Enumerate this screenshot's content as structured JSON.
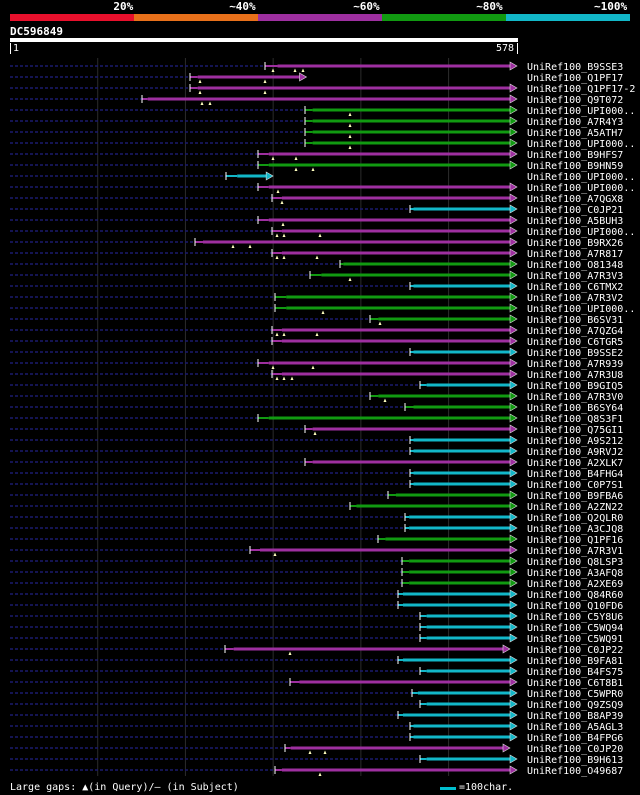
{
  "query": {
    "name": "DC596849",
    "start": "1",
    "end": "578",
    "length": 578
  },
  "legend": [
    {
      "label": "20%",
      "color": "#e8102c"
    },
    {
      "label": "~40%",
      "color": "#e8701a"
    },
    {
      "label": "~60%",
      "color": "#9e2fa0"
    },
    {
      "label": "~80%",
      "color": "#119a11"
    },
    {
      "label": "~100%",
      "color": "#12b7c8"
    }
  ],
  "footer": {
    "gaps_text": "Large gaps: ▲(in Query)/– (in Subject)",
    "scale_text": "=100char."
  },
  "hits": [
    {
      "name": "UniRef100_B9SSE3",
      "qs": 305,
      "qe": 578,
      "tier": 2,
      "left": 265,
      "gaps": [
        8,
        30,
        38
      ],
      "endcap": "tri"
    },
    {
      "name": "UniRef100_Q1PF17",
      "qs": 214,
      "qe": 338,
      "tier": 2,
      "left": 190,
      "gaps": [
        10,
        75
      ],
      "endcap": "tri"
    },
    {
      "name": "UniRef100_Q1PF17-2",
      "qs": 214,
      "qe": 578,
      "tier": 2,
      "left": 190,
      "gaps": [
        10,
        75
      ],
      "endcap": "tri"
    },
    {
      "name": "UniRef100_Q9T072",
      "qs": 157,
      "qe": 578,
      "tier": 2,
      "left": 142,
      "gaps": [
        60,
        68
      ],
      "endcap": "tri"
    },
    {
      "name": "UniRef100_UPI000..",
      "qs": 345,
      "qe": 578,
      "tier": 3,
      "left": 305,
      "gaps": [
        45
      ],
      "endcap": "tri"
    },
    {
      "name": "UniRef100_A7R4Y3",
      "qs": 345,
      "qe": 578,
      "tier": 3,
      "left": 305,
      "gaps": [
        45
      ],
      "endcap": "tri"
    },
    {
      "name": "UniRef100_A5ATH7",
      "qs": 345,
      "qe": 578,
      "tier": 3,
      "left": 305,
      "gaps": [
        45
      ],
      "endcap": "tri"
    },
    {
      "name": "UniRef100_UPI000..",
      "qs": 345,
      "qe": 578,
      "tier": 3,
      "left": 305,
      "gaps": [
        45
      ],
      "endcap": "tri"
    },
    {
      "name": "UniRef100_B9HFS7",
      "qs": 295,
      "qe": 578,
      "tier": 2,
      "left": 258,
      "gaps": [
        15,
        38
      ],
      "endcap": "tri"
    },
    {
      "name": "UniRef100_B9HN59",
      "qs": 295,
      "qe": 578,
      "tier": 3,
      "left": 258,
      "gaps": [
        38,
        55
      ],
      "endcap": "tri"
    },
    {
      "name": "UniRef100_UPI000..",
      "qs": 259,
      "qe": 300,
      "tier": 4,
      "left": 226,
      "gaps": [],
      "endcap": "tri"
    },
    {
      "name": "UniRef100_UPI000..",
      "qs": 295,
      "qe": 578,
      "tier": 2,
      "left": 258,
      "gaps": [
        20
      ],
      "endcap": "tri"
    },
    {
      "name": "UniRef100_A7QGX8",
      "qs": 310,
      "qe": 578,
      "tier": 2,
      "left": 272,
      "gaps": [
        10
      ],
      "endcap": "tri"
    },
    {
      "name": "UniRef100_C0JP21",
      "qs": 460,
      "qe": 578,
      "tier": 4,
      "left": 410,
      "gaps": [],
      "endcap": "tri"
    },
    {
      "name": "UniRef100_A5BUH3",
      "qs": 295,
      "qe": 578,
      "tier": 2,
      "left": 258,
      "gaps": [
        25
      ],
      "endcap": "tri"
    },
    {
      "name": "UniRef100_UPI000..",
      "qs": 310,
      "qe": 578,
      "tier": 2,
      "left": 272,
      "gaps": [
        5,
        12,
        48
      ],
      "endcap": "tri"
    },
    {
      "name": "UniRef100_B9RX26",
      "qs": 220,
      "qe": 578,
      "tier": 2,
      "left": 195,
      "gaps": [
        38,
        55
      ],
      "endcap": "tri"
    },
    {
      "name": "UniRef100_A7R817",
      "qs": 310,
      "qe": 578,
      "tier": 2,
      "left": 272,
      "gaps": [
        5,
        12,
        45
      ],
      "endcap": "tri"
    },
    {
      "name": "UniRef100_O81348",
      "qs": 380,
      "qe": 578,
      "tier": 3,
      "left": 340,
      "gaps": [],
      "endcap": "tri"
    },
    {
      "name": "UniRef100_A7R3V3",
      "qs": 355,
      "qe": 578,
      "tier": 3,
      "left": 310,
      "gaps": [
        40
      ],
      "endcap": "tri"
    },
    {
      "name": "UniRef100_C6TMX2",
      "qs": 460,
      "qe": 578,
      "tier": 4,
      "left": 410,
      "gaps": [],
      "endcap": "tri"
    },
    {
      "name": "UniRef100_A7R3V2",
      "qs": 315,
      "qe": 578,
      "tier": 3,
      "left": 275,
      "gaps": [],
      "endcap": "tri"
    },
    {
      "name": "UniRef100_UPI000..",
      "qs": 315,
      "qe": 578,
      "tier": 3,
      "left": 275,
      "gaps": [
        48
      ],
      "endcap": "tri"
    },
    {
      "name": "UniRef100_B6SV31",
      "qs": 420,
      "qe": 578,
      "tier": 3,
      "left": 370,
      "gaps": [
        10
      ],
      "endcap": "tri"
    },
    {
      "name": "UniRef100_A7QZG4",
      "qs": 310,
      "qe": 578,
      "tier": 2,
      "left": 272,
      "gaps": [
        5,
        12,
        45
      ],
      "endcap": "tri"
    },
    {
      "name": "UniRef100_C6TGR5",
      "qs": 310,
      "qe": 578,
      "tier": 2,
      "left": 272,
      "gaps": [],
      "endcap": "tri"
    },
    {
      "name": "UniRef100_B9SSE2",
      "qs": 460,
      "qe": 578,
      "tier": 4,
      "left": 410,
      "gaps": [],
      "endcap": "tri"
    },
    {
      "name": "UniRef100_A7R939",
      "qs": 295,
      "qe": 578,
      "tier": 2,
      "left": 258,
      "gaps": [
        15,
        55
      ],
      "endcap": "tri"
    },
    {
      "name": "UniRef100_A7R3U8",
      "qs": 310,
      "qe": 578,
      "tier": 2,
      "left": 272,
      "gaps": [
        5,
        12,
        20
      ],
      "endcap": "tri"
    },
    {
      "name": "UniRef100_B9GIQ5",
      "qs": 475,
      "qe": 578,
      "tier": 4,
      "left": 420,
      "gaps": [],
      "endcap": "tri"
    },
    {
      "name": "UniRef100_A7R3V0",
      "qs": 420,
      "qe": 578,
      "tier": 3,
      "left": 370,
      "gaps": [
        15
      ],
      "endcap": "tri"
    },
    {
      "name": "UniRef100_B6SY64",
      "qs": 460,
      "qe": 578,
      "tier": 3,
      "left": 405,
      "gaps": [],
      "endcap": "tri"
    },
    {
      "name": "UniRef100_Q8S3F1",
      "qs": 295,
      "qe": 578,
      "tier": 3,
      "left": 258,
      "gaps": [],
      "endcap": "tri"
    },
    {
      "name": "UniRef100_Q75GI1",
      "qs": 345,
      "qe": 578,
      "tier": 2,
      "left": 305,
      "gaps": [
        10
      ],
      "endcap": "tri"
    },
    {
      "name": "UniRef100_A9S212",
      "qs": 460,
      "qe": 578,
      "tier": 4,
      "left": 410,
      "gaps": [],
      "endcap": "tri"
    },
    {
      "name": "UniRef100_A9RVJ2",
      "qs": 460,
      "qe": 578,
      "tier": 4,
      "left": 410,
      "gaps": [],
      "endcap": "tri"
    },
    {
      "name": "UniRef100_A2XLK7",
      "qs": 345,
      "qe": 578,
      "tier": 2,
      "left": 305,
      "gaps": [],
      "endcap": "tri"
    },
    {
      "name": "UniRef100_B4FHG4",
      "qs": 460,
      "qe": 578,
      "tier": 4,
      "left": 410,
      "gaps": [],
      "endcap": "tri"
    },
    {
      "name": "UniRef100_C0P7S1",
      "qs": 460,
      "qe": 578,
      "tier": 4,
      "left": 410,
      "gaps": [],
      "endcap": "tri"
    },
    {
      "name": "UniRef100_B9FBA6",
      "qs": 440,
      "qe": 578,
      "tier": 3,
      "left": 388,
      "gaps": [],
      "endcap": "tri"
    },
    {
      "name": "UniRef100_A2ZN22",
      "qs": 395,
      "qe": 578,
      "tier": 3,
      "left": 350,
      "gaps": [],
      "endcap": "tri"
    },
    {
      "name": "UniRef100_Q2QLR0",
      "qs": 455,
      "qe": 578,
      "tier": 4,
      "left": 405,
      "gaps": [],
      "endcap": "tri"
    },
    {
      "name": "UniRef100_A3CJQ8",
      "qs": 455,
      "qe": 578,
      "tier": 4,
      "left": 405,
      "gaps": [],
      "endcap": "tri"
    },
    {
      "name": "UniRef100_Q1PF16",
      "qs": 428,
      "qe": 578,
      "tier": 3,
      "left": 378,
      "gaps": [],
      "endcap": "tri"
    },
    {
      "name": "UniRef100_A7R3V1",
      "qs": 285,
      "qe": 578,
      "tier": 2,
      "left": 250,
      "gaps": [
        25
      ],
      "endcap": "tri"
    },
    {
      "name": "UniRef100_Q8LSP3",
      "qs": 455,
      "qe": 578,
      "tier": 3,
      "left": 402,
      "gaps": [],
      "endcap": "tri"
    },
    {
      "name": "UniRef100_A3AFQ8",
      "qs": 455,
      "qe": 578,
      "tier": 3,
      "left": 402,
      "gaps": [],
      "endcap": "tri"
    },
    {
      "name": "UniRef100_A2XE69",
      "qs": 455,
      "qe": 578,
      "tier": 3,
      "left": 402,
      "gaps": [],
      "endcap": "tri"
    },
    {
      "name": "UniRef100_Q84R60",
      "qs": 448,
      "qe": 578,
      "tier": 4,
      "left": 398,
      "gaps": [],
      "endcap": "tri"
    },
    {
      "name": "UniRef100_Q10FD6",
      "qs": 448,
      "qe": 578,
      "tier": 4,
      "left": 398,
      "gaps": [],
      "endcap": "tri"
    },
    {
      "name": "UniRef100_C5Y8U6",
      "qs": 475,
      "qe": 578,
      "tier": 4,
      "left": 420,
      "gaps": [],
      "endcap": "tri"
    },
    {
      "name": "UniRef100_C5WQ94",
      "qs": 475,
      "qe": 578,
      "tier": 4,
      "left": 420,
      "gaps": [],
      "endcap": "tri"
    },
    {
      "name": "UniRef100_C5WQ91",
      "qs": 475,
      "qe": 578,
      "tier": 4,
      "left": 420,
      "gaps": [],
      "endcap": "tri"
    },
    {
      "name": "UniRef100_C0JP22",
      "qs": 255,
      "qe": 570,
      "tier": 2,
      "left": 225,
      "gaps": [
        65
      ],
      "endcap": "tri"
    },
    {
      "name": "UniRef100_B9FA81",
      "qs": 448,
      "qe": 578,
      "tier": 4,
      "left": 398,
      "gaps": [],
      "endcap": "tri"
    },
    {
      "name": "UniRef100_B4FS75",
      "qs": 475,
      "qe": 578,
      "tier": 4,
      "left": 420,
      "gaps": [],
      "endcap": "tri"
    },
    {
      "name": "UniRef100_C6T8B1",
      "qs": 330,
      "qe": 578,
      "tier": 2,
      "left": 290,
      "gaps": [],
      "endcap": "tri"
    },
    {
      "name": "UniRef100_C5WPR0",
      "qs": 465,
      "qe": 578,
      "tier": 4,
      "left": 412,
      "gaps": [],
      "endcap": "tri"
    },
    {
      "name": "UniRef100_Q9ZSQ9",
      "qs": 475,
      "qe": 578,
      "tier": 4,
      "left": 420,
      "gaps": [],
      "endcap": "tri"
    },
    {
      "name": "UniRef100_B8AP39",
      "qs": 448,
      "qe": 578,
      "tier": 4,
      "left": 398,
      "gaps": [],
      "endcap": "tri"
    },
    {
      "name": "UniRef100_A5AGL3",
      "qs": 460,
      "qe": 578,
      "tier": 4,
      "left": 410,
      "gaps": [],
      "endcap": "tri"
    },
    {
      "name": "UniRef100_B4FPG6",
      "qs": 460,
      "qe": 578,
      "tier": 4,
      "left": 410,
      "gaps": [],
      "endcap": "tri"
    },
    {
      "name": "UniRef100_C0JP20",
      "qs": 320,
      "qe": 570,
      "tier": 2,
      "left": 285,
      "gaps": [
        25,
        40
      ],
      "endcap": "tri"
    },
    {
      "name": "UniRef100_B9H613",
      "qs": 475,
      "qe": 578,
      "tier": 4,
      "left": 420,
      "gaps": [],
      "endcap": "tri"
    },
    {
      "name": "UniRef100_O49687",
      "qs": 310,
      "qe": 578,
      "tier": 2,
      "left": 275,
      "gaps": [
        45
      ],
      "endcap": "tri"
    }
  ]
}
